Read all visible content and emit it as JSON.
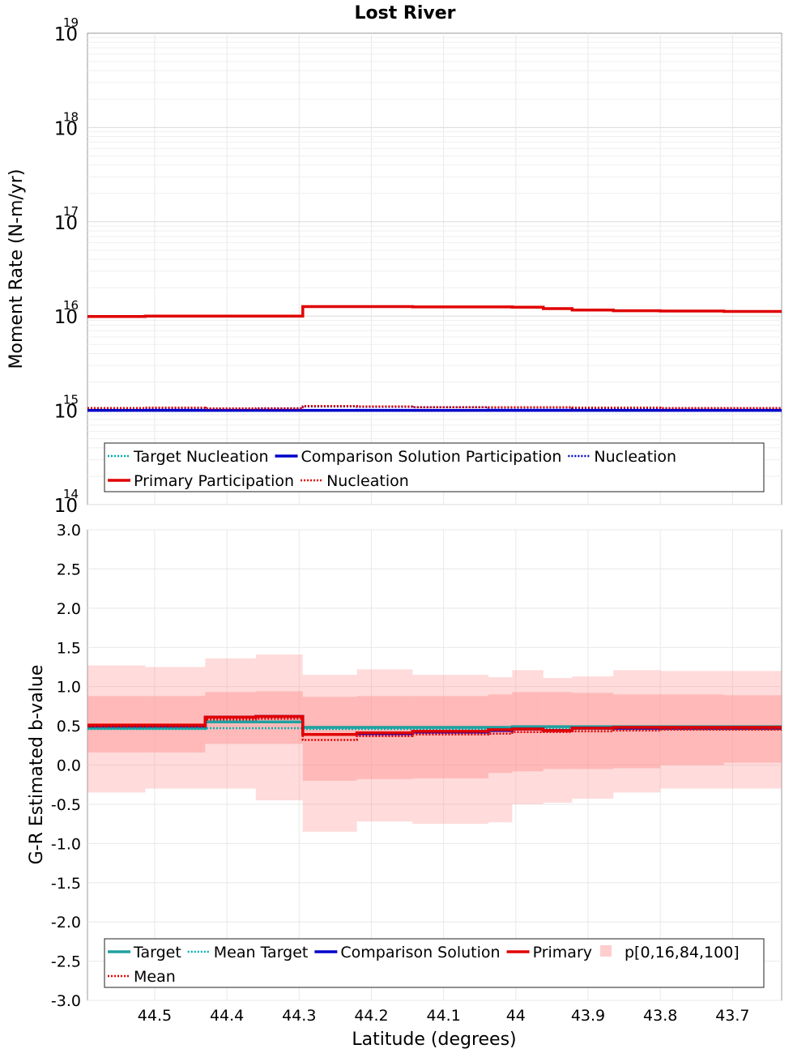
{
  "chart_data": {
    "title": "Lost River",
    "xlabel": "Latitude (degrees)",
    "x_ticks": [
      "44.5",
      "44.4",
      "44.3",
      "44.2",
      "44.1",
      "44",
      "43.9",
      "43.8",
      "43.7"
    ],
    "x_tick_values": [
      44.5,
      44.4,
      44.3,
      44.2,
      44.1,
      44.0,
      43.9,
      43.8,
      43.7
    ],
    "xlim": [
      44.593,
      43.632
    ],
    "bin_edges": [
      44.593,
      44.513,
      44.43,
      44.36,
      44.295,
      44.22,
      44.143,
      44.038,
      44.005,
      43.962,
      43.922,
      43.865,
      43.8,
      43.712,
      43.632
    ],
    "panels": [
      {
        "type": "line",
        "scale": "log",
        "ylabel": "Moment Rate (N-m/yr)",
        "ylim": [
          100000000000000.0,
          1e+19
        ],
        "y_ticks": [
          {
            "base": "10",
            "exp": "14",
            "value": 100000000000000.0
          },
          {
            "base": "10",
            "exp": "15",
            "value": 1000000000000000.0
          },
          {
            "base": "10",
            "exp": "16",
            "value": 1e+16
          },
          {
            "base": "10",
            "exp": "17",
            "value": 1e+17
          },
          {
            "base": "10",
            "exp": "18",
            "value": 1e+18
          },
          {
            "base": "10",
            "exp": "19",
            "value": 1e+19
          }
        ],
        "series": [
          {
            "name": "Target Nucleation",
            "color": "#00b0b0",
            "dash": "dotted",
            "values": [
              990000000000000.0,
              990000000000000.0,
              990000000000000.0,
              990000000000000.0,
              990000000000000.0,
              990000000000000.0,
              990000000000000.0,
              990000000000000.0,
              990000000000000.0,
              990000000000000.0,
              990000000000000.0,
              990000000000000.0,
              990000000000000.0,
              990000000000000.0
            ]
          },
          {
            "name": "Comparison Solution Participation",
            "color": "#0000c8",
            "dash": "solid",
            "values": [
              1000000000000000.0,
              1000000000000000.0,
              1000000000000000.0,
              1000000000000000.0,
              1000000000000000.0,
              1000000000000000.0,
              1000000000000000.0,
              1000000000000000.0,
              1000000000000000.0,
              1000000000000000.0,
              1000000000000000.0,
              1000000000000000.0,
              1000000000000000.0,
              1000000000000000.0
            ]
          },
          {
            "name": "Nucleation",
            "color": "#0000c8",
            "dash": "dotted",
            "values": [
              1050000000000000.0,
              1060000000000000.0,
              1040000000000000.0,
              1050000000000000.0,
              1100000000000000.0,
              1090000000000000.0,
              1080000000000000.0,
              1070000000000000.0,
              1070000000000000.0,
              1070000000000000.0,
              1060000000000000.0,
              1060000000000000.0,
              1050000000000000.0,
              1050000000000000.0
            ]
          },
          {
            "name": "Primary Participation",
            "color": "#e00000",
            "dash": "solid",
            "values": [
              9900000000000000.0,
              1e+16,
              1e+16,
              1e+16,
              1.26e+16,
              1.26e+16,
              1.25e+16,
              1.25e+16,
              1.24e+16,
              1.2e+16,
              1.16e+16,
              1.14e+16,
              1.13e+16,
              1.12e+16
            ]
          },
          {
            "name": "Nucleation",
            "color": "#e00000",
            "dash": "dotted",
            "values": [
              1060000000000000.0,
              1070000000000000.0,
              1050000000000000.0,
              1050000000000000.0,
              1110000000000000.0,
              1100000000000000.0,
              1080000000000000.0,
              1080000000000000.0,
              1080000000000000.0,
              1080000000000000.0,
              1070000000000000.0,
              1070000000000000.0,
              1060000000000000.0,
              1060000000000000.0
            ]
          }
        ],
        "legend": [
          {
            "label": "Target Nucleation",
            "color": "#00b0b0",
            "dash": "dotted"
          },
          {
            "label": "Comparison Solution Participation",
            "color": "#0000c8",
            "dash": "solid"
          },
          {
            "label": "Nucleation",
            "color": "#0000c8",
            "dash": "dotted"
          },
          {
            "label": "Primary Participation",
            "color": "#e00000",
            "dash": "solid"
          },
          {
            "label": "Nucleation",
            "color": "#e00000",
            "dash": "dotted"
          }
        ],
        "legend_position": "bottom"
      },
      {
        "type": "line",
        "scale": "linear",
        "ylabel": "G-R Estimated b-value",
        "ylim": [
          -3.0,
          3.0
        ],
        "y_ticks": [
          "-3.0",
          "-2.5",
          "-2.0",
          "-1.5",
          "-1.0",
          "-0.5",
          "0.0",
          "0.5",
          "1.0",
          "1.5",
          "2.0",
          "2.5",
          "3.0"
        ],
        "y_tick_values": [
          -3.0,
          -2.5,
          -2.0,
          -1.5,
          -1.0,
          -0.5,
          0.0,
          0.5,
          1.0,
          1.5,
          2.0,
          2.5,
          3.0
        ],
        "bands": {
          "name": "p[0,16,84,100]",
          "color": "#ff9090",
          "p0": [
            -0.35,
            -0.3,
            -0.3,
            -0.45,
            -0.85,
            -0.72,
            -0.75,
            -0.73,
            -0.5,
            -0.48,
            -0.43,
            -0.35,
            -0.3,
            -0.3
          ],
          "p16": [
            0.16,
            0.16,
            0.27,
            0.27,
            -0.2,
            -0.18,
            -0.17,
            -0.1,
            -0.08,
            -0.05,
            -0.05,
            -0.04,
            0.0,
            0.03
          ],
          "p84": [
            0.88,
            0.88,
            0.93,
            0.94,
            0.87,
            0.88,
            0.88,
            0.9,
            0.93,
            0.93,
            0.92,
            0.9,
            0.9,
            0.89
          ],
          "p100": [
            1.27,
            1.25,
            1.36,
            1.41,
            1.15,
            1.22,
            1.15,
            1.12,
            1.21,
            1.11,
            1.13,
            1.21,
            1.2,
            1.2
          ]
        },
        "series": [
          {
            "name": "Target",
            "color": "#20a0a0",
            "dash": "solid",
            "values": [
              0.47,
              0.47,
              0.55,
              0.55,
              0.48,
              0.48,
              0.48,
              0.48,
              0.49,
              0.49,
              0.49,
              0.49,
              0.49,
              0.49
            ]
          },
          {
            "name": "Mean Target",
            "color": "#00b0b0",
            "dash": "dotted",
            "values": [
              0.46,
              0.46,
              0.47,
              0.47,
              0.46,
              0.46,
              0.46,
              0.46,
              0.46,
              0.46,
              0.46,
              0.46,
              0.46,
              0.46
            ]
          },
          {
            "name": "Comparison Solution",
            "color": "#0000c8",
            "dash": "solid",
            "values": [
              0.5,
              0.5,
              0.61,
              0.62,
              0.39,
              0.4,
              0.42,
              0.44,
              0.46,
              0.44,
              0.47,
              0.47,
              0.47,
              0.47
            ]
          },
          {
            "name": "Primary",
            "color": "#e00000",
            "dash": "solid",
            "values": [
              0.51,
              0.51,
              0.61,
              0.62,
              0.39,
              0.41,
              0.43,
              0.45,
              0.46,
              0.44,
              0.47,
              0.48,
              0.48,
              0.48
            ]
          },
          {
            "name": "Mean",
            "color": "#e00000",
            "dash": "dotted",
            "values": [
              0.49,
              0.49,
              0.58,
              0.59,
              0.32,
              0.37,
              0.39,
              0.4,
              0.42,
              0.42,
              0.43,
              0.44,
              0.45,
              0.45
            ]
          }
        ],
        "legend": [
          {
            "label": "Target",
            "color": "#20a0a0",
            "dash": "solid"
          },
          {
            "label": "Mean Target",
            "color": "#00b0b0",
            "dash": "dotted"
          },
          {
            "label": "Comparison Solution",
            "color": "#0000c8",
            "dash": "solid"
          },
          {
            "label": "Primary",
            "color": "#e00000",
            "dash": "solid"
          },
          {
            "label": "p[0,16,84,100]",
            "color": "#ff9090",
            "dash": "box"
          },
          {
            "label": "Mean",
            "color": "#e00000",
            "dash": "dotted"
          }
        ],
        "legend_position": "bottom"
      }
    ]
  }
}
